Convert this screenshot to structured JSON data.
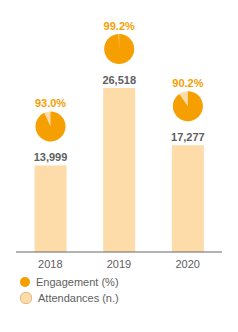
{
  "chart_data": {
    "type": "bar",
    "categories": [
      "2018",
      "2019",
      "2020"
    ],
    "series": [
      {
        "name": "Engagement (%)",
        "type": "pie",
        "color": "#F5A000",
        "values": [
          93.0,
          99.2,
          90.2
        ],
        "value_labels": [
          "93.0%",
          "99.2%",
          "90.2%"
        ]
      },
      {
        "name": "Attendances (n.)",
        "type": "bar",
        "color": "#FDDCAA",
        "values": [
          13999,
          26518,
          17277
        ],
        "value_labels": [
          "13,999",
          "26,518",
          "17,277"
        ]
      }
    ],
    "ylim": [
      0,
      26518
    ],
    "tick_labels": "x",
    "data_labels": true,
    "grid": false,
    "legend": "lower left"
  }
}
